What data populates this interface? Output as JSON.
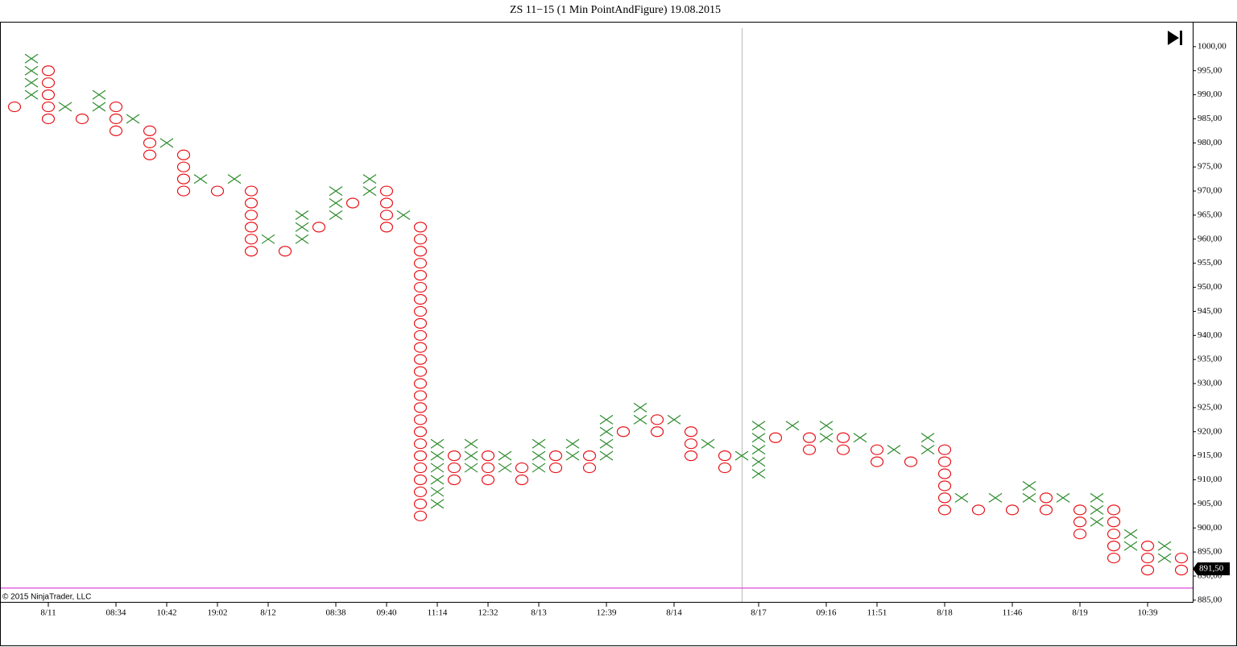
{
  "chart_data": {
    "type": "point_and_figure",
    "title": "ZS 11−15 (1 Min PointAndFigure)  19.08.2015",
    "copyright": "© 2015 NinjaTrader, LLC",
    "x_color": "#2e8b2e",
    "o_color": "#e8141a",
    "box": 2.5,
    "ylim": [
      883.3,
      1005
    ],
    "yticks": [
      {
        "value": 885,
        "label": "885,00"
      },
      {
        "value": 890,
        "label": "890,00"
      },
      {
        "value": 895,
        "label": "895,00"
      },
      {
        "value": 900,
        "label": "900,00"
      },
      {
        "value": 905,
        "label": "905,00"
      },
      {
        "value": 910,
        "label": "910,00"
      },
      {
        "value": 915,
        "label": "915,00"
      },
      {
        "value": 920,
        "label": "920,00"
      },
      {
        "value": 925,
        "label": "925,00"
      },
      {
        "value": 930,
        "label": "930,00"
      },
      {
        "value": 935,
        "label": "935,00"
      },
      {
        "value": 940,
        "label": "940,00"
      },
      {
        "value": 945,
        "label": "945,00"
      },
      {
        "value": 950,
        "label": "950,00"
      },
      {
        "value": 955,
        "label": "955,00"
      },
      {
        "value": 960,
        "label": "960,00"
      },
      {
        "value": 965,
        "label": "965,00"
      },
      {
        "value": 970,
        "label": "970,00"
      },
      {
        "value": 975,
        "label": "975,00"
      },
      {
        "value": 980,
        "label": "980,00"
      },
      {
        "value": 985,
        "label": "985,00"
      },
      {
        "value": 990,
        "label": "990,00"
      },
      {
        "value": 995,
        "label": "995,00"
      },
      {
        "value": 1000,
        "label": "1000,00"
      }
    ],
    "last_price": {
      "value": 891.5,
      "label": "891,50"
    },
    "hline": {
      "value": 887.5,
      "color": "#d21ed2"
    },
    "categories": [
      null,
      null,
      "8/11",
      null,
      null,
      null,
      "08:34",
      null,
      null,
      "10:42",
      null,
      null,
      "19:02",
      null,
      null,
      "8/12",
      null,
      null,
      null,
      "08:38",
      null,
      null,
      "09:40",
      null,
      null,
      "11:14",
      null,
      null,
      "12:32",
      null,
      null,
      "8/13",
      null,
      null,
      null,
      "12:39",
      null,
      null,
      null,
      "8/14",
      null,
      null,
      null,
      null,
      "8/17",
      null,
      null,
      null,
      "09:16",
      null,
      null,
      "11:51",
      null,
      null,
      null,
      "8/18",
      null,
      null,
      null,
      "11:46",
      null,
      null,
      null,
      "8/19",
      null,
      null,
      null,
      "10:39",
      null,
      null
    ],
    "columns": [
      {
        "symbol": "O",
        "low": 987.5,
        "high": 987.5
      },
      {
        "symbol": "X",
        "low": 990,
        "high": 997.5
      },
      {
        "symbol": "O",
        "low": 985,
        "high": 995
      },
      {
        "symbol": "X",
        "low": 987.5,
        "high": 987.5
      },
      {
        "symbol": "O",
        "low": 985,
        "high": 985
      },
      {
        "symbol": "X",
        "low": 987.5,
        "high": 990
      },
      {
        "symbol": "O",
        "low": 982.5,
        "high": 987.5
      },
      {
        "symbol": "X",
        "low": 985,
        "high": 985
      },
      {
        "symbol": "O",
        "low": 977.5,
        "high": 982.5
      },
      {
        "symbol": "X",
        "low": 980,
        "high": 980
      },
      {
        "symbol": "O",
        "low": 970,
        "high": 977.5
      },
      {
        "symbol": "X",
        "low": 972.5,
        "high": 972.5
      },
      {
        "symbol": "O",
        "low": 970,
        "high": 970
      },
      {
        "symbol": "X",
        "low": 972.5,
        "high": 972.5
      },
      {
        "symbol": "O",
        "low": 957.5,
        "high": 970
      },
      {
        "symbol": "X",
        "low": 960,
        "high": 960
      },
      {
        "symbol": "O",
        "low": 957.5,
        "high": 957.5
      },
      {
        "symbol": "X",
        "low": 960,
        "high": 965
      },
      {
        "symbol": "O",
        "low": 962.5,
        "high": 962.5
      },
      {
        "symbol": "X",
        "low": 965,
        "high": 970
      },
      {
        "symbol": "O",
        "low": 967.5,
        "high": 967.5
      },
      {
        "symbol": "X",
        "low": 970,
        "high": 972.5
      },
      {
        "symbol": "O",
        "low": 962.5,
        "high": 970
      },
      {
        "symbol": "X",
        "low": 965,
        "high": 965
      },
      {
        "symbol": "O",
        "low": 902.5,
        "high": 962.5
      },
      {
        "symbol": "X",
        "low": 905,
        "high": 917.5
      },
      {
        "symbol": "O",
        "low": 910,
        "high": 915
      },
      {
        "symbol": "X",
        "low": 912.5,
        "high": 917.5
      },
      {
        "symbol": "O",
        "low": 910,
        "high": 915
      },
      {
        "symbol": "X",
        "low": 912.5,
        "high": 915
      },
      {
        "symbol": "O",
        "low": 910,
        "high": 912.5
      },
      {
        "symbol": "X",
        "low": 912.5,
        "high": 917.5
      },
      {
        "symbol": "O",
        "low": 912.5,
        "high": 915
      },
      {
        "symbol": "X",
        "low": 915,
        "high": 917.5
      },
      {
        "symbol": "O",
        "low": 912.5,
        "high": 915
      },
      {
        "symbol": "X",
        "low": 915,
        "high": 922.5
      },
      {
        "symbol": "O",
        "low": 920,
        "high": 920
      },
      {
        "symbol": "X",
        "low": 922.5,
        "high": 925
      },
      {
        "symbol": "O",
        "low": 920,
        "high": 922.5
      },
      {
        "symbol": "X",
        "low": 922.5,
        "high": 922.5
      },
      {
        "symbol": "O",
        "low": 915,
        "high": 920
      },
      {
        "symbol": "X",
        "low": 917.5,
        "high": 917.5
      },
      {
        "symbol": "O",
        "low": 912.5,
        "high": 915
      },
      {
        "symbol": "X",
        "low": 915,
        "high": 915
      },
      {
        "symbol": "X",
        "low": 911.25,
        "high": 921.25
      },
      {
        "symbol": "O",
        "low": 918.75,
        "high": 918.75
      },
      {
        "symbol": "X",
        "low": 921.25,
        "high": 921.25
      },
      {
        "symbol": "O",
        "low": 916.25,
        "high": 918.75
      },
      {
        "symbol": "X",
        "low": 918.75,
        "high": 921.25
      },
      {
        "symbol": "O",
        "low": 916.25,
        "high": 918.75
      },
      {
        "symbol": "X",
        "low": 918.75,
        "high": 918.75
      },
      {
        "symbol": "O",
        "low": 913.75,
        "high": 916.25
      },
      {
        "symbol": "X",
        "low": 916.25,
        "high": 916.25
      },
      {
        "symbol": "O",
        "low": 913.75,
        "high": 913.75
      },
      {
        "symbol": "X",
        "low": 916.25,
        "high": 918.75
      },
      {
        "symbol": "O",
        "low": 903.75,
        "high": 916.25
      },
      {
        "symbol": "X",
        "low": 906.25,
        "high": 906.25
      },
      {
        "symbol": "O",
        "low": 903.75,
        "high": 903.75
      },
      {
        "symbol": "X",
        "low": 906.25,
        "high": 906.25
      },
      {
        "symbol": "O",
        "low": 903.75,
        "high": 903.75
      },
      {
        "symbol": "X",
        "low": 906.25,
        "high": 908.75
      },
      {
        "symbol": "O",
        "low": 903.75,
        "high": 906.25
      },
      {
        "symbol": "X",
        "low": 906.25,
        "high": 906.25
      },
      {
        "symbol": "O",
        "low": 898.75,
        "high": 903.75
      },
      {
        "symbol": "X",
        "low": 901.25,
        "high": 906.25
      },
      {
        "symbol": "O",
        "low": 893.75,
        "high": 903.75
      },
      {
        "symbol": "X",
        "low": 896.25,
        "high": 898.75
      },
      {
        "symbol": "O",
        "low": 891.25,
        "high": 896.25
      },
      {
        "symbol": "X",
        "low": 893.75,
        "high": 896.25
      },
      {
        "symbol": "O",
        "low": 891.25,
        "high": 893.75
      }
    ]
  }
}
